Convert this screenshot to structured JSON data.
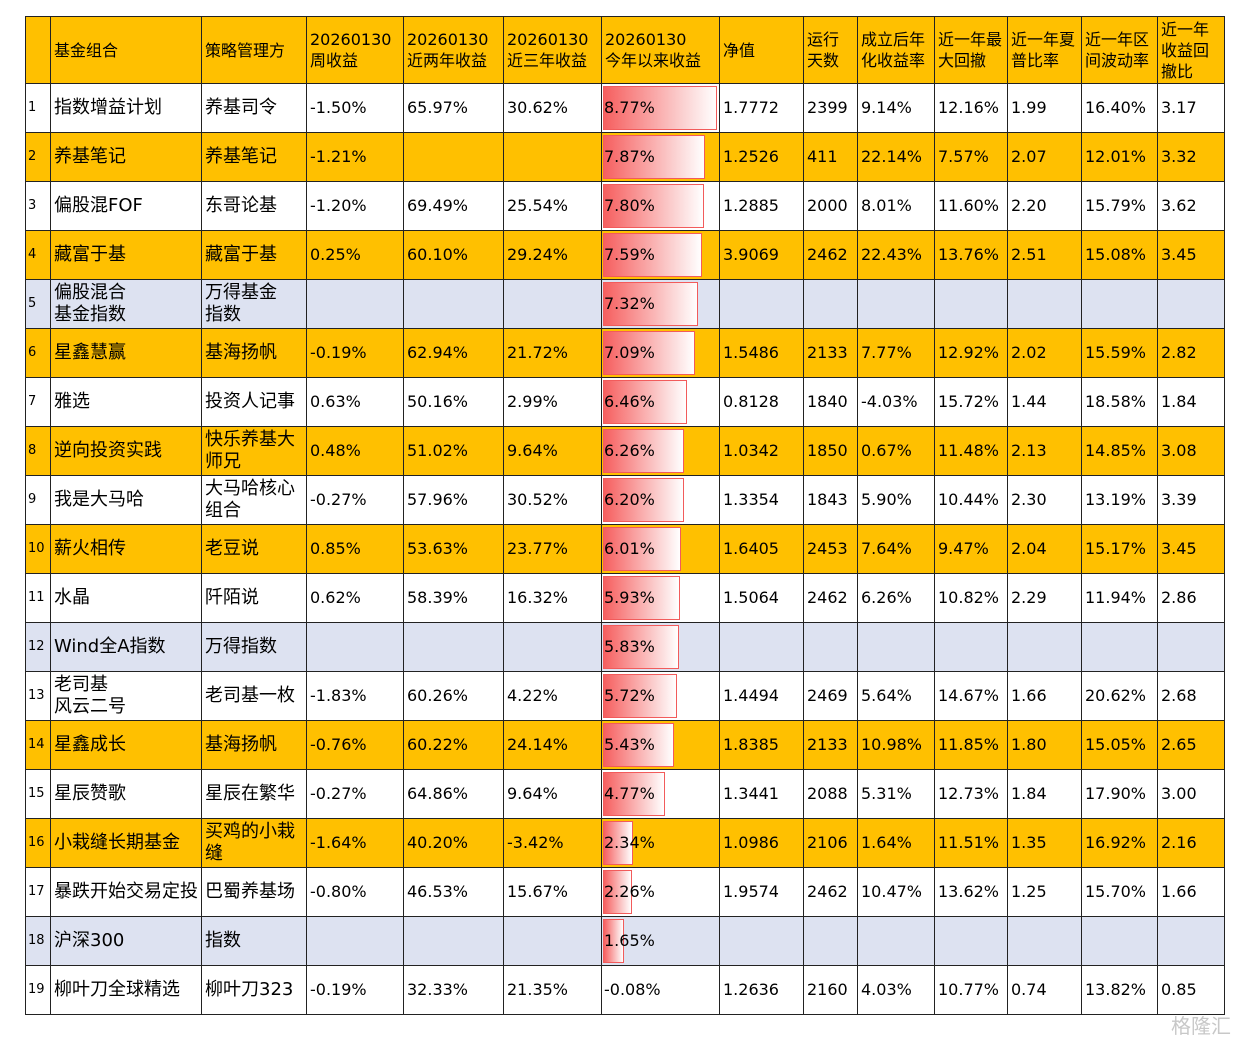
{
  "table": {
    "header": [
      null,
      "基金组合",
      "策略管理方",
      "20260130\n周收益",
      "20260130\n近两年收益",
      "20260130\n近三年收益",
      "20260130\n今年以来收益",
      "净值",
      "运行天数",
      "成立后年化收益率",
      "近一年最大回撤",
      "近一年夏普比率",
      "近一年区间波动率",
      "近一年收益回撤比"
    ],
    "header_fill": "#ffc000",
    "rows": [
      [
        "1",
        "指数增益计划",
        "养基司令",
        "-1.50%",
        "65.97%",
        "30.62%",
        "8.77%",
        "1.7772",
        "2399",
        "9.14%",
        "12.16%",
        "1.99",
        "16.40%",
        "3.17"
      ],
      [
        "2",
        "养基笔记",
        "养基笔记",
        "-1.21%",
        null,
        null,
        "7.87%",
        "1.2526",
        "411",
        "22.14%",
        "7.57%",
        "2.07",
        "12.01%",
        "3.32"
      ],
      [
        "3",
        "偏股混FOF",
        "东哥论基",
        "-1.20%",
        "69.49%",
        "25.54%",
        "7.80%",
        "1.2885",
        "2000",
        "8.01%",
        "11.60%",
        "2.20",
        "15.79%",
        "3.62"
      ],
      [
        "4",
        "藏富于基",
        "藏富于基",
        "0.25%",
        "60.10%",
        "29.24%",
        "7.59%",
        "3.9069",
        "2462",
        "22.43%",
        "13.76%",
        "2.51",
        "15.08%",
        "3.45"
      ],
      [
        "5",
        "偏股混合\n基金指数",
        "万得基金\n指数",
        null,
        null,
        null,
        "7.32%",
        null,
        null,
        null,
        null,
        null,
        null,
        null
      ],
      [
        "6",
        "星鑫慧赢",
        "基海扬帆",
        "-0.19%",
        "62.94%",
        "21.72%",
        "7.09%",
        "1.5486",
        "2133",
        "7.77%",
        "12.92%",
        "2.02",
        "15.59%",
        "2.82"
      ],
      [
        "7",
        "雅选",
        "投资人记事",
        "0.63%",
        "50.16%",
        "2.99%",
        "6.46%",
        "0.8128",
        "1840",
        "-4.03%",
        "15.72%",
        "1.44",
        "18.58%",
        "1.84"
      ],
      [
        "8",
        "逆向投资实践",
        "快乐养基大师兄",
        "0.48%",
        "51.02%",
        "9.64%",
        "6.26%",
        "1.0342",
        "1850",
        "0.67%",
        "11.48%",
        "2.13",
        "14.85%",
        "3.08"
      ],
      [
        "9",
        "我是大马哈",
        "大马哈核心组合",
        "-0.27%",
        "57.96%",
        "30.52%",
        "6.20%",
        "1.3354",
        "1843",
        "5.90%",
        "10.44%",
        "2.30",
        "13.19%",
        "3.39"
      ],
      [
        "10",
        "薪火相传",
        "老豆说",
        "0.85%",
        "53.63%",
        "23.77%",
        "6.01%",
        "1.6405",
        "2453",
        "7.64%",
        "9.47%",
        "2.04",
        "15.17%",
        "3.45"
      ],
      [
        "11",
        "水晶",
        "阡陌说",
        "0.62%",
        "58.39%",
        "16.32%",
        "5.93%",
        "1.5064",
        "2462",
        "6.26%",
        "10.82%",
        "2.29",
        "11.94%",
        "2.86"
      ],
      [
        "12",
        "Wind全A指数",
        "万得指数",
        null,
        null,
        null,
        "5.83%",
        null,
        null,
        null,
        null,
        null,
        null,
        null
      ],
      [
        "13",
        "老司基\n风云二号",
        "老司基一枚",
        "-1.83%",
        "60.26%",
        "4.22%",
        "5.72%",
        "1.4494",
        "2469",
        "5.64%",
        "14.67%",
        "1.66",
        "20.62%",
        "2.68"
      ],
      [
        "14",
        "星鑫成长",
        "基海扬帆",
        "-0.76%",
        "60.22%",
        "24.14%",
        "5.43%",
        "1.8385",
        "2133",
        "10.98%",
        "11.85%",
        "1.80",
        "15.05%",
        "2.65"
      ],
      [
        "15",
        "星辰赞歌",
        "星辰在繁华",
        "-0.27%",
        "64.86%",
        "9.64%",
        "4.77%",
        "1.3441",
        "2088",
        "5.31%",
        "12.73%",
        "1.84",
        "17.90%",
        "3.00"
      ],
      [
        "16",
        "小栽缝长期基金",
        "买鸡的小栽缝",
        "-1.64%",
        "40.20%",
        "-3.42%",
        "2.34%",
        "1.0986",
        "2106",
        "1.64%",
        "11.51%",
        "1.35",
        "16.92%",
        "2.16"
      ],
      [
        "17",
        "暴跌开始交易定投",
        "巴蜀养基场",
        "-0.80%",
        "46.53%",
        "15.67%",
        "2.26%",
        "1.9574",
        "2462",
        "10.47%",
        "13.62%",
        "1.25",
        "15.70%",
        "1.66"
      ],
      [
        "18",
        "沪深300",
        "指数",
        null,
        null,
        null,
        "1.65%",
        null,
        null,
        null,
        null,
        null,
        null,
        null
      ],
      [
        "19",
        "柳叶刀全球精选",
        "柳叶刀323",
        "-0.19%",
        "32.33%",
        "21.35%",
        "-0.08%",
        "1.2636",
        "2160",
        "4.03%",
        "10.77%",
        "0.74",
        "13.82%",
        "0.85"
      ]
    ],
    "row_fills": [
      "#ffffff",
      "#ffc000",
      "#ffffff",
      "#ffc000",
      "#dde2f1",
      "#ffc000",
      "#ffffff",
      "#ffc000",
      "#ffffff",
      "#ffc000",
      "#ffffff",
      "#dde2f1",
      "#ffffff",
      "#ffc000",
      "#ffffff",
      "#ffc000",
      "#ffffff",
      "#dde2f1",
      "#ffffff"
    ],
    "bar_column": 6
  },
  "watermark": "格隆汇"
}
